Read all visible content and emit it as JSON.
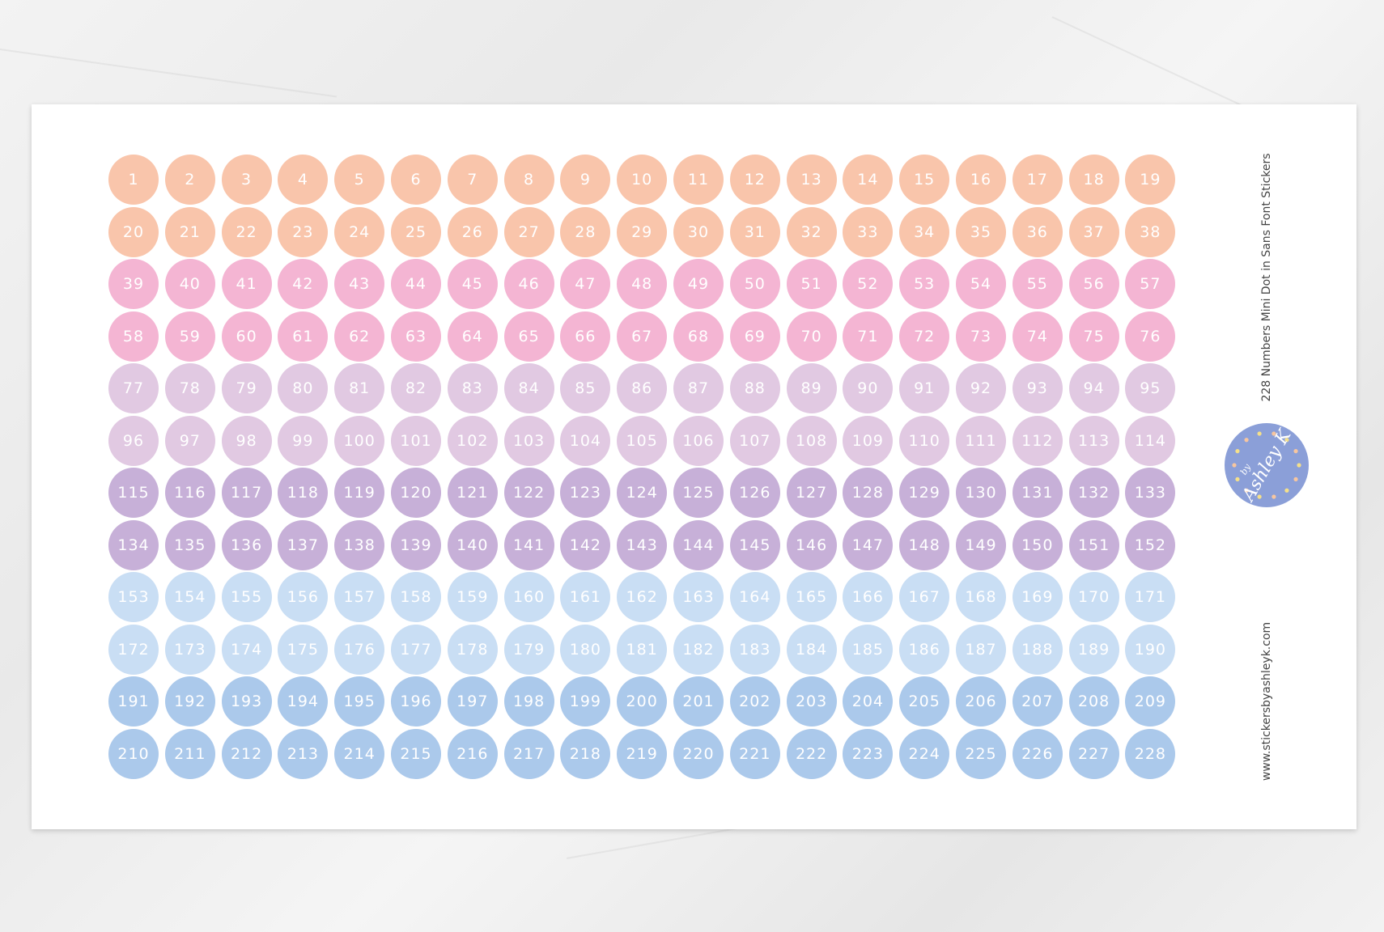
{
  "sheet": {
    "title": "228 Numbers Mini Dot in Sans Font Stickers",
    "website": "www.stickersbyashleyk.com",
    "logo_text": "by AshleyK",
    "logo_color": "#8b9fd8"
  },
  "stickers": {
    "rows": [
      {
        "color": "#f9c5ab",
        "numbers": [
          1,
          2,
          3,
          4,
          5,
          6,
          7,
          8,
          9,
          10,
          11,
          12,
          13,
          14,
          15,
          16,
          17,
          18,
          19
        ]
      },
      {
        "color": "#f9c5ab",
        "numbers": [
          20,
          21,
          22,
          23,
          24,
          25,
          26,
          27,
          28,
          29,
          30,
          31,
          32,
          33,
          34,
          35,
          36,
          37,
          38
        ]
      },
      {
        "color": "#f4b5d3",
        "numbers": [
          39,
          40,
          41,
          42,
          43,
          44,
          45,
          46,
          47,
          48,
          49,
          50,
          51,
          52,
          53,
          54,
          55,
          56,
          57
        ]
      },
      {
        "color": "#f4b5d3",
        "numbers": [
          58,
          59,
          60,
          61,
          62,
          63,
          64,
          65,
          66,
          67,
          68,
          69,
          70,
          71,
          72,
          73,
          74,
          75,
          76
        ]
      },
      {
        "color": "#e1c9e2",
        "numbers": [
          77,
          78,
          79,
          80,
          81,
          82,
          83,
          84,
          85,
          86,
          87,
          88,
          89,
          90,
          91,
          92,
          93,
          94,
          95
        ]
      },
      {
        "color": "#e1c9e2",
        "numbers": [
          96,
          97,
          98,
          99,
          100,
          101,
          102,
          103,
          104,
          105,
          106,
          107,
          108,
          109,
          110,
          111,
          112,
          113,
          114
        ]
      },
      {
        "color": "#c7b0d8",
        "numbers": [
          115,
          116,
          117,
          118,
          119,
          120,
          121,
          122,
          123,
          124,
          125,
          126,
          127,
          128,
          129,
          130,
          131,
          132,
          133
        ]
      },
      {
        "color": "#c7b0d8",
        "numbers": [
          134,
          135,
          136,
          137,
          138,
          139,
          140,
          141,
          142,
          143,
          144,
          145,
          146,
          147,
          148,
          149,
          150,
          151,
          152
        ]
      },
      {
        "color": "#c9def4",
        "numbers": [
          153,
          154,
          155,
          156,
          157,
          158,
          159,
          160,
          161,
          162,
          163,
          164,
          165,
          166,
          167,
          168,
          169,
          170,
          171
        ]
      },
      {
        "color": "#c9def4",
        "numbers": [
          172,
          173,
          174,
          175,
          176,
          177,
          178,
          179,
          180,
          181,
          182,
          183,
          184,
          185,
          186,
          187,
          188,
          189,
          190
        ]
      },
      {
        "color": "#abc9eb",
        "numbers": [
          191,
          192,
          193,
          194,
          195,
          196,
          197,
          198,
          199,
          200,
          201,
          202,
          203,
          204,
          205,
          206,
          207,
          208,
          209
        ]
      },
      {
        "color": "#abc9eb",
        "numbers": [
          210,
          211,
          212,
          213,
          214,
          215,
          216,
          217,
          218,
          219,
          220,
          221,
          222,
          223,
          224,
          225,
          226,
          227,
          228
        ]
      }
    ]
  }
}
